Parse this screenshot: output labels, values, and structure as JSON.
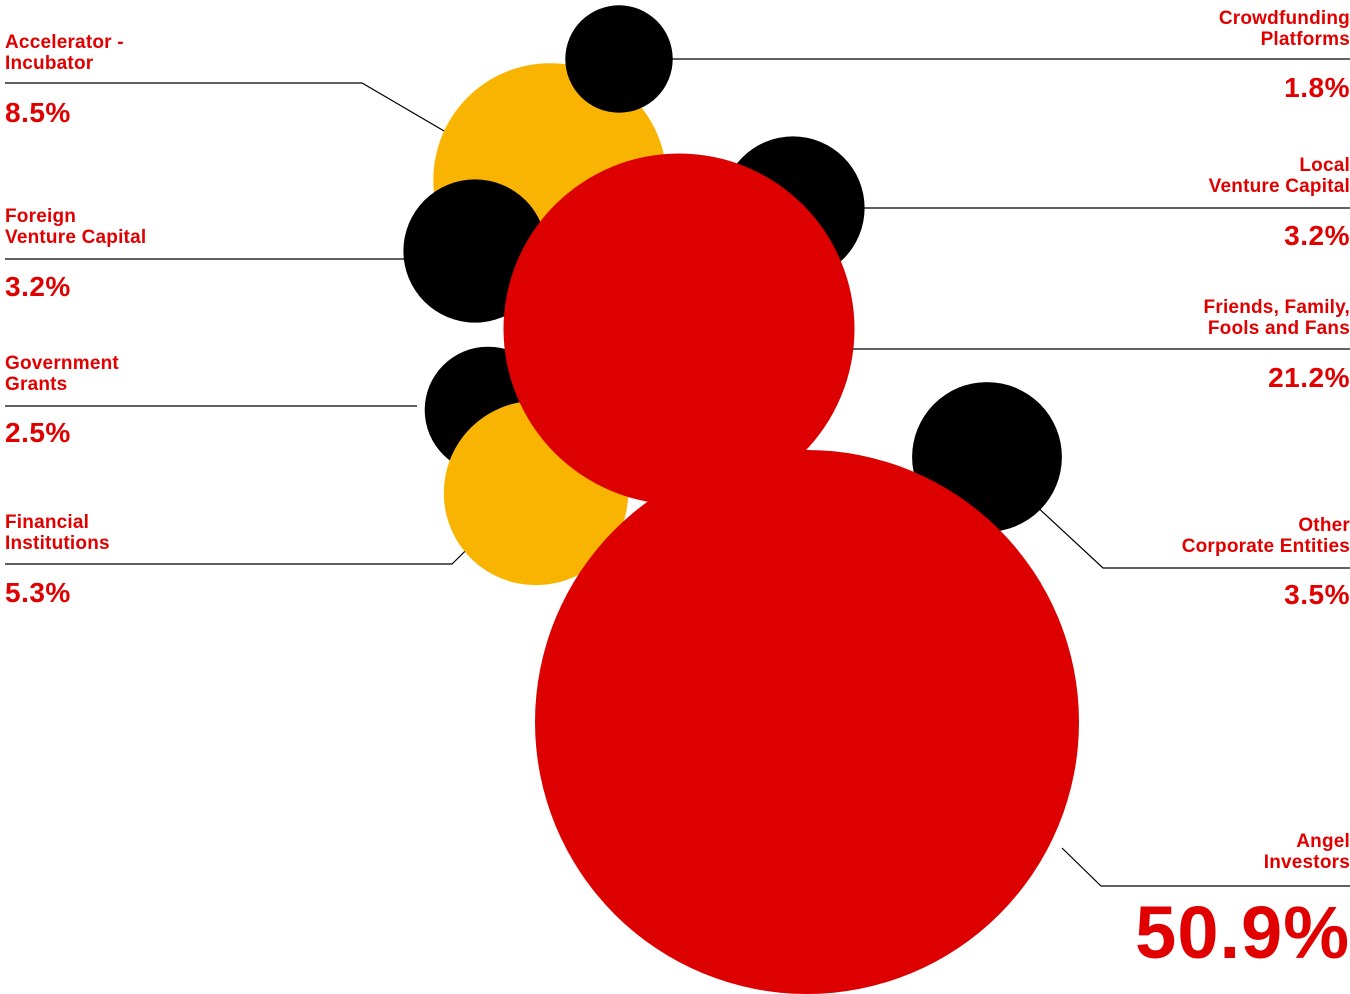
{
  "chart_data": {
    "type": "bubble",
    "unit": "%",
    "colors": {
      "red": "#dd0000",
      "yellow": "#f8b400",
      "black": "#000000",
      "text": "#e10000"
    },
    "series": [
      {
        "name": "Accelerator - Incubator",
        "value": 8.5,
        "value_label": "8.5%",
        "color": "#f8b400"
      },
      {
        "name": "Foreign Venture Capital",
        "value": 3.2,
        "value_label": "3.2%",
        "color": "#000000"
      },
      {
        "name": "Government Grants",
        "value": 2.5,
        "value_label": "2.5%",
        "color": "#000000"
      },
      {
        "name": "Financial Institutions",
        "value": 5.3,
        "value_label": "5.3%",
        "color": "#f8b400"
      },
      {
        "name": "Crowdfunding Platforms",
        "value": 1.8,
        "value_label": "1.8%",
        "color": "#000000"
      },
      {
        "name": "Local Venture Capital",
        "value": 3.2,
        "value_label": "3.2%",
        "color": "#000000"
      },
      {
        "name": "Friends, Family, Fools and Fans",
        "value": 21.2,
        "value_label": "21.2%",
        "color": "#dd0000"
      },
      {
        "name": "Other Corporate Entities",
        "value": 3.5,
        "value_label": "3.5%",
        "color": "#000000"
      },
      {
        "name": "Angel Investors",
        "value": 50.9,
        "value_label": "50.9%",
        "color": "#dd0000"
      }
    ]
  }
}
